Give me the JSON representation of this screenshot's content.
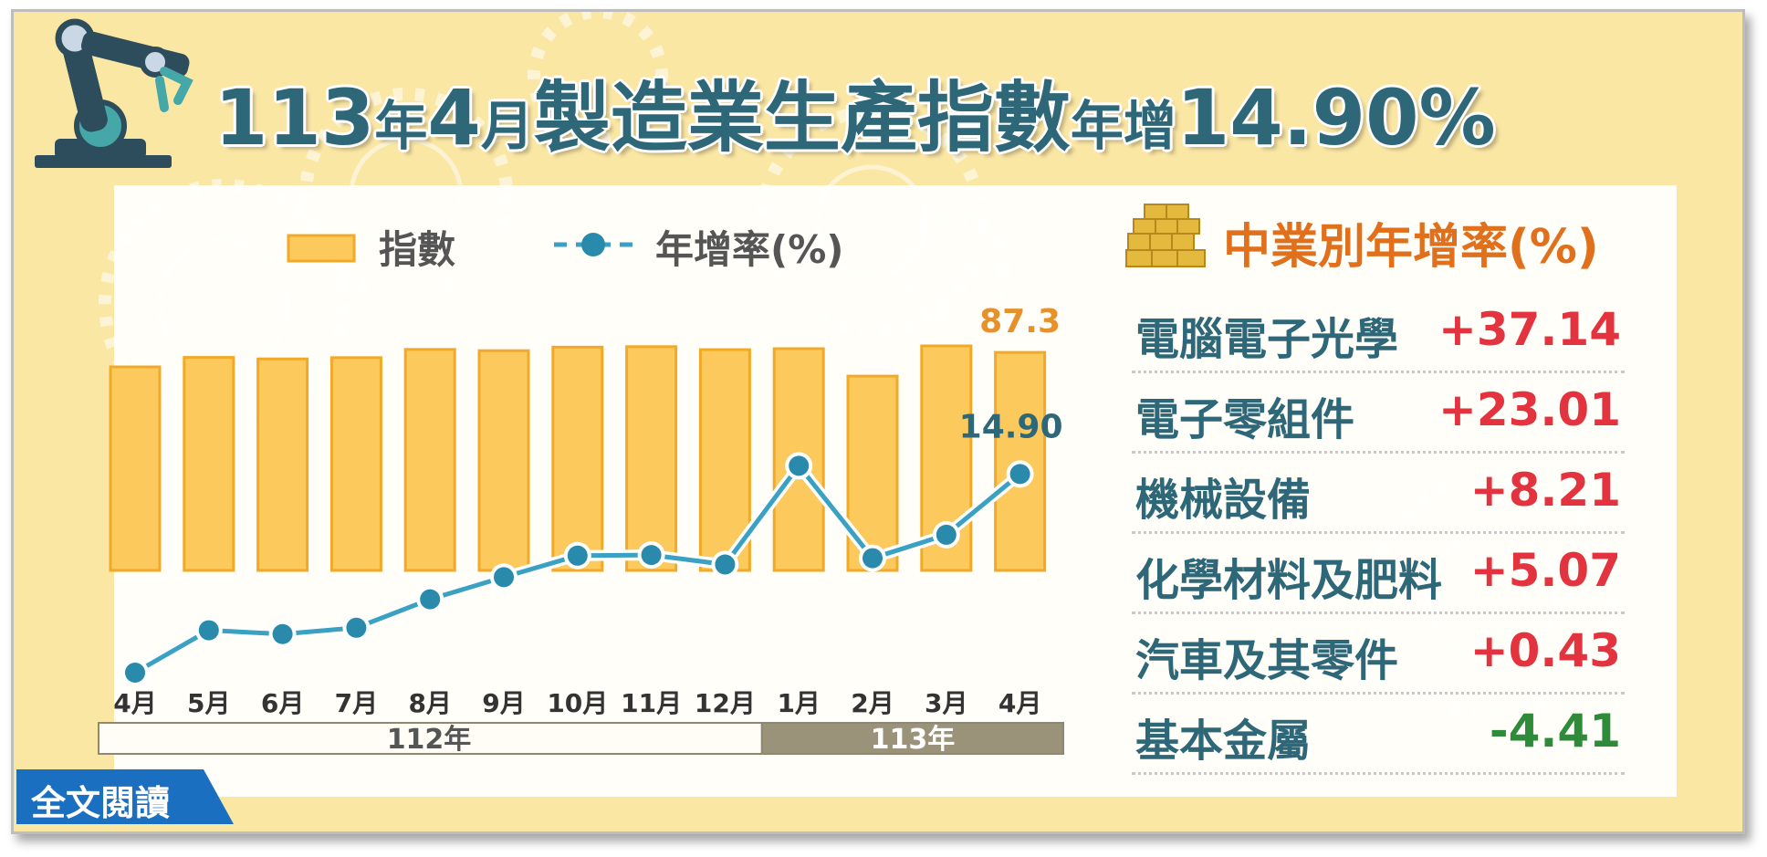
{
  "header": {
    "title_parts": [
      {
        "text": "113",
        "size": "big"
      },
      {
        "text": "年",
        "size": "small"
      },
      {
        "text": "4",
        "size": "big"
      },
      {
        "text": "月",
        "size": "small"
      },
      {
        "text": "製造業生產指數",
        "size": "big"
      },
      {
        "text": "年增",
        "size": "small"
      },
      {
        "text": "14.90%",
        "size": "big"
      }
    ]
  },
  "chart_data": {
    "type": "bar",
    "legend": {
      "bar_label": "指數",
      "line_label": "年增率(%)"
    },
    "categories": [
      "4月",
      "5月",
      "6月",
      "7月",
      "8月",
      "9月",
      "10月",
      "11月",
      "12月",
      "1月",
      "2月",
      "3月",
      "4月"
    ],
    "year_groups": [
      {
        "label": "112年",
        "count": 9
      },
      {
        "label": "113年",
        "count": 4
      }
    ],
    "series": [
      {
        "name": "指數",
        "type": "bar",
        "values": [
          81.5,
          85.3,
          84.7,
          85.2,
          88.5,
          88.0,
          89.4,
          89.6,
          88.4,
          88.8,
          77.8,
          89.9,
          87.3
        ]
      },
      {
        "name": "年增率(%)",
        "type": "line",
        "values": [
          -16.5,
          -9.8,
          -10.4,
          -9.4,
          -4.9,
          -1.4,
          2.0,
          2.1,
          0.6,
          16.2,
          1.6,
          5.3,
          14.9
        ]
      }
    ],
    "labels": {
      "last_bar_value": "87.3",
      "last_line_value": "14.90"
    },
    "colors": {
      "bar_fill": "#fcc95c",
      "bar_stroke": "#f3a928",
      "line": "#3aa1c2",
      "dot": "#2a8aab",
      "bar_label": "#e8902a",
      "line_label": "#2d6778"
    }
  },
  "industry_growth": {
    "title": "中業別年增率(%)",
    "items": [
      {
        "name": "電腦電子光學",
        "value": "+37.14",
        "color": "#e3333f"
      },
      {
        "name": "電子零組件",
        "value": "+23.01",
        "color": "#e3333f"
      },
      {
        "name": "機械設備",
        "value": "+8.21",
        "color": "#e3333f"
      },
      {
        "name": "化學材料及肥料",
        "value": "+5.07",
        "color": "#e3333f"
      },
      {
        "name": "汽車及其零件",
        "value": "+0.43",
        "color": "#e3333f"
      },
      {
        "name": "基本金屬",
        "value": "-4.41",
        "color": "#2e8b3a"
      }
    ]
  },
  "footer": {
    "read_full_label": "全文閱讀"
  },
  "colors": {
    "card_bg": "#fbe7a4",
    "title": "#2d6778",
    "accent_orange": "#e0701b",
    "button_blue": "#1a6fc0"
  }
}
